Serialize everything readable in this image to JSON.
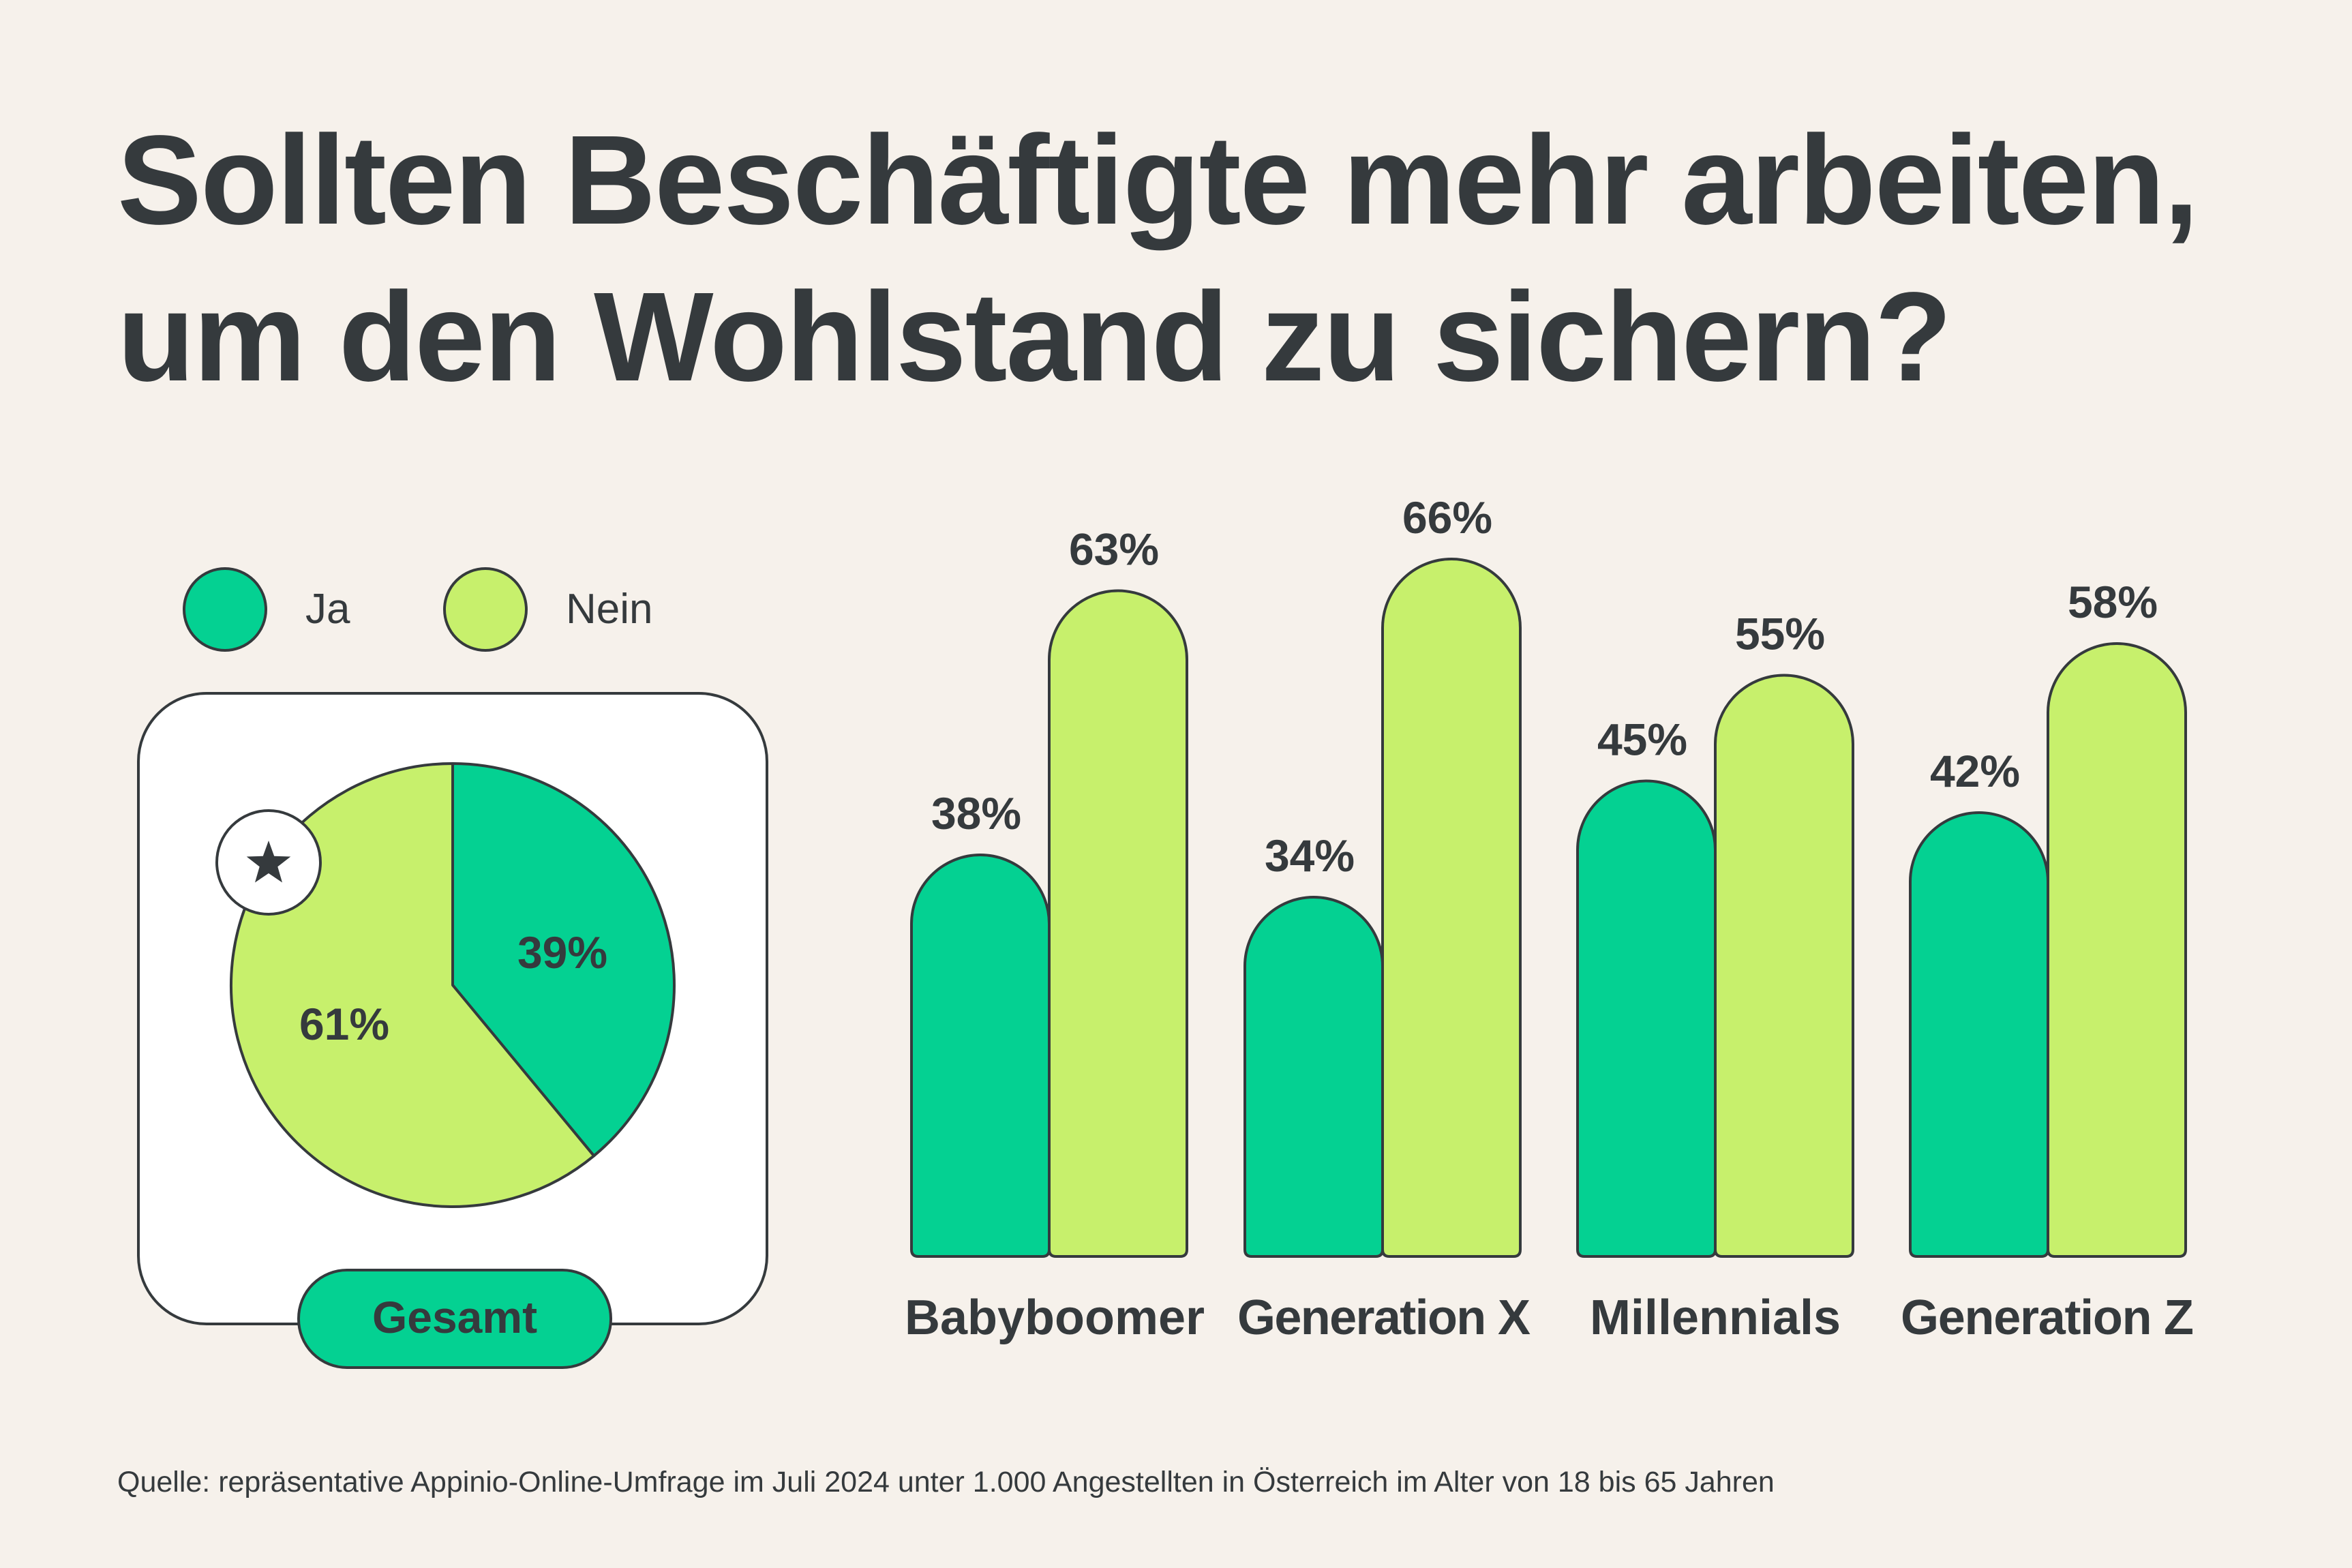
{
  "title": {
    "line1": "Sollten Beschäftigte mehr arbeiten,",
    "line2": "um den Wohlstand zu sichern?"
  },
  "colors": {
    "ja": "#04d192",
    "nein": "#c7f06c",
    "stroke": "#353a3d",
    "text": "#353a3d",
    "background": "#f6f1eb",
    "card": "#ffffff"
  },
  "legend": [
    {
      "key": "ja",
      "label": "Ja"
    },
    {
      "key": "nein",
      "label": "Nein"
    }
  ],
  "chart_data": [
    {
      "type": "pie",
      "label": "Gesamt",
      "icon": "star-icon",
      "slices": [
        {
          "name": "Ja",
          "value": 39,
          "value_label": "39%"
        },
        {
          "name": "Nein",
          "value": 61,
          "value_label": "61%"
        }
      ]
    },
    {
      "type": "bar",
      "categories": [
        "Babyboomer",
        "Generation X",
        "Millennials",
        "Generation Z"
      ],
      "series": [
        {
          "name": "Ja",
          "values": [
            38,
            34,
            45,
            42
          ],
          "labels": [
            "38%",
            "34%",
            "45%",
            "42%"
          ]
        },
        {
          "name": "Nein",
          "values": [
            63,
            66,
            55,
            58
          ],
          "labels": [
            "63%",
            "66%",
            "55%",
            "58%"
          ]
        }
      ]
    }
  ],
  "source": "Quelle: repräsentative Appinio-Online-Umfrage im Juli 2024 unter 1.000 Angestellten in Österreich im Alter von 18 bis 65 Jahren"
}
